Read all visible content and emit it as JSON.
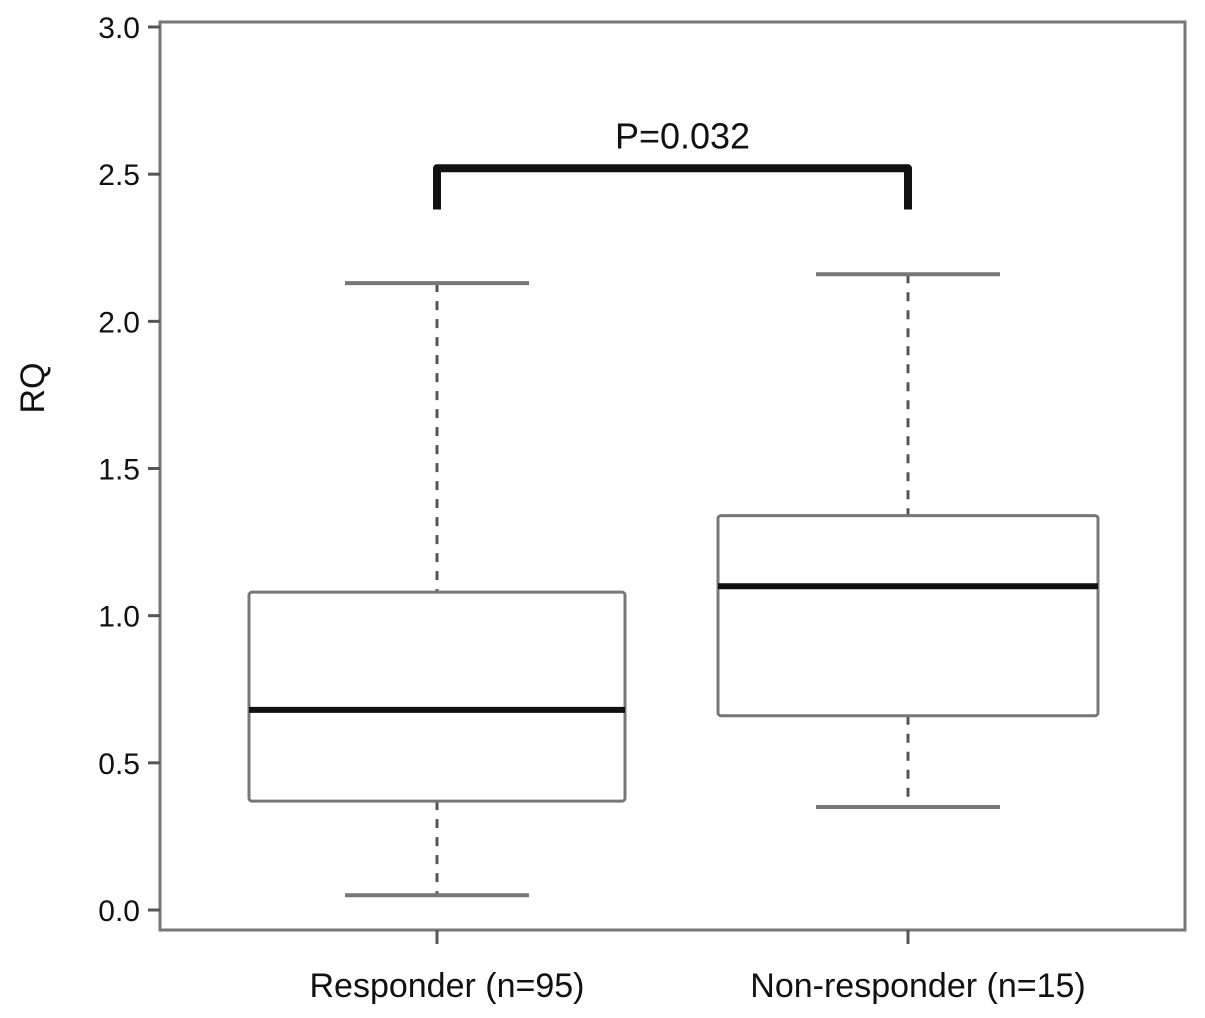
{
  "chart_data": {
    "type": "box",
    "title": "",
    "xlabel": "",
    "ylabel": "RQ",
    "ylim": [
      0.0,
      3.0
    ],
    "yticks": [
      "0.0",
      "0.5",
      "1.0",
      "1.5",
      "2.0",
      "2.5",
      "3.0"
    ],
    "grid": false,
    "categories": [
      "Responder (n=95)",
      "Non-responder (n=15)"
    ],
    "boxes": [
      {
        "category": "Responder (n=95)",
        "whisker_low": 0.05,
        "q1": 0.37,
        "median": 0.68,
        "q3": 1.08,
        "whisker_high": 2.13
      },
      {
        "category": "Non-responder (n=15)",
        "whisker_low": 0.35,
        "q1": 0.66,
        "median": 1.1,
        "q3": 1.34,
        "whisker_high": 2.16
      }
    ],
    "annotations": [
      {
        "text": "P=0.032",
        "from": "Responder (n=95)",
        "to": "Non-responder (n=15)",
        "bracket_low": 2.38,
        "bracket_high": 2.52
      }
    ]
  }
}
